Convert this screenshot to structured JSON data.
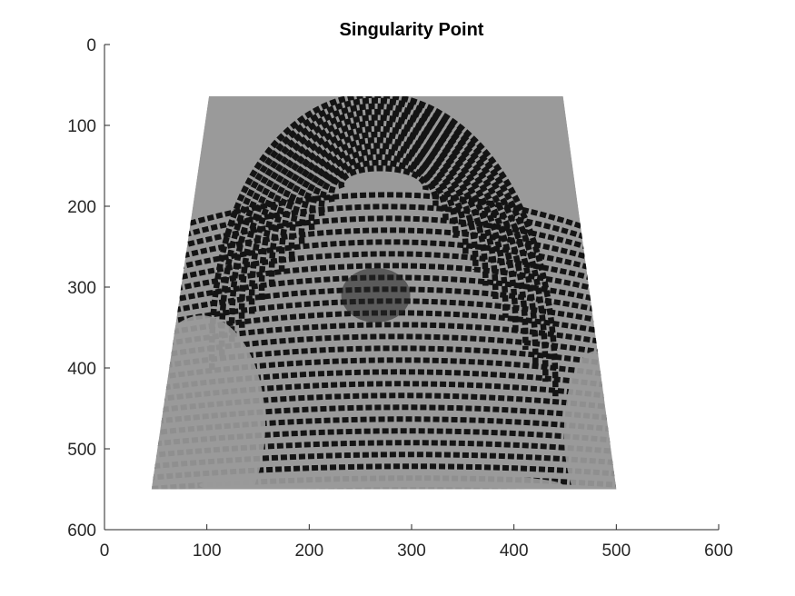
{
  "chart_data": {
    "type": "image",
    "title": "Singularity Point",
    "xlabel": "",
    "ylabel": "",
    "xlim": [
      0,
      600
    ],
    "ylim": [
      0,
      600
    ],
    "y_reversed": true,
    "x_ticks": [
      0,
      100,
      200,
      300,
      400,
      500,
      600
    ],
    "y_ticks": [
      0,
      100,
      200,
      300,
      400,
      500,
      600
    ],
    "x_tick_labels": [
      "0",
      "100",
      "200",
      "300",
      "400",
      "500",
      "600"
    ],
    "y_tick_labels": [
      "0",
      "100",
      "200",
      "300",
      "400",
      "500",
      "600"
    ],
    "grid": false,
    "image": {
      "content": "fingerprint-grayscale",
      "region_corners_data_units": [
        [
          102,
          64
        ],
        [
          448,
          64
        ],
        [
          500,
          550
        ],
        [
          46,
          550
        ]
      ],
      "background_gray": "#9a9a9a",
      "ridge_color": "#141414",
      "valley_color": "#b4b4b4",
      "dark_patch_center": [
        265,
        310
      ],
      "core_center": [
        255,
        160
      ]
    },
    "colors": {
      "axis": "#262626",
      "background": "#ffffff"
    }
  }
}
